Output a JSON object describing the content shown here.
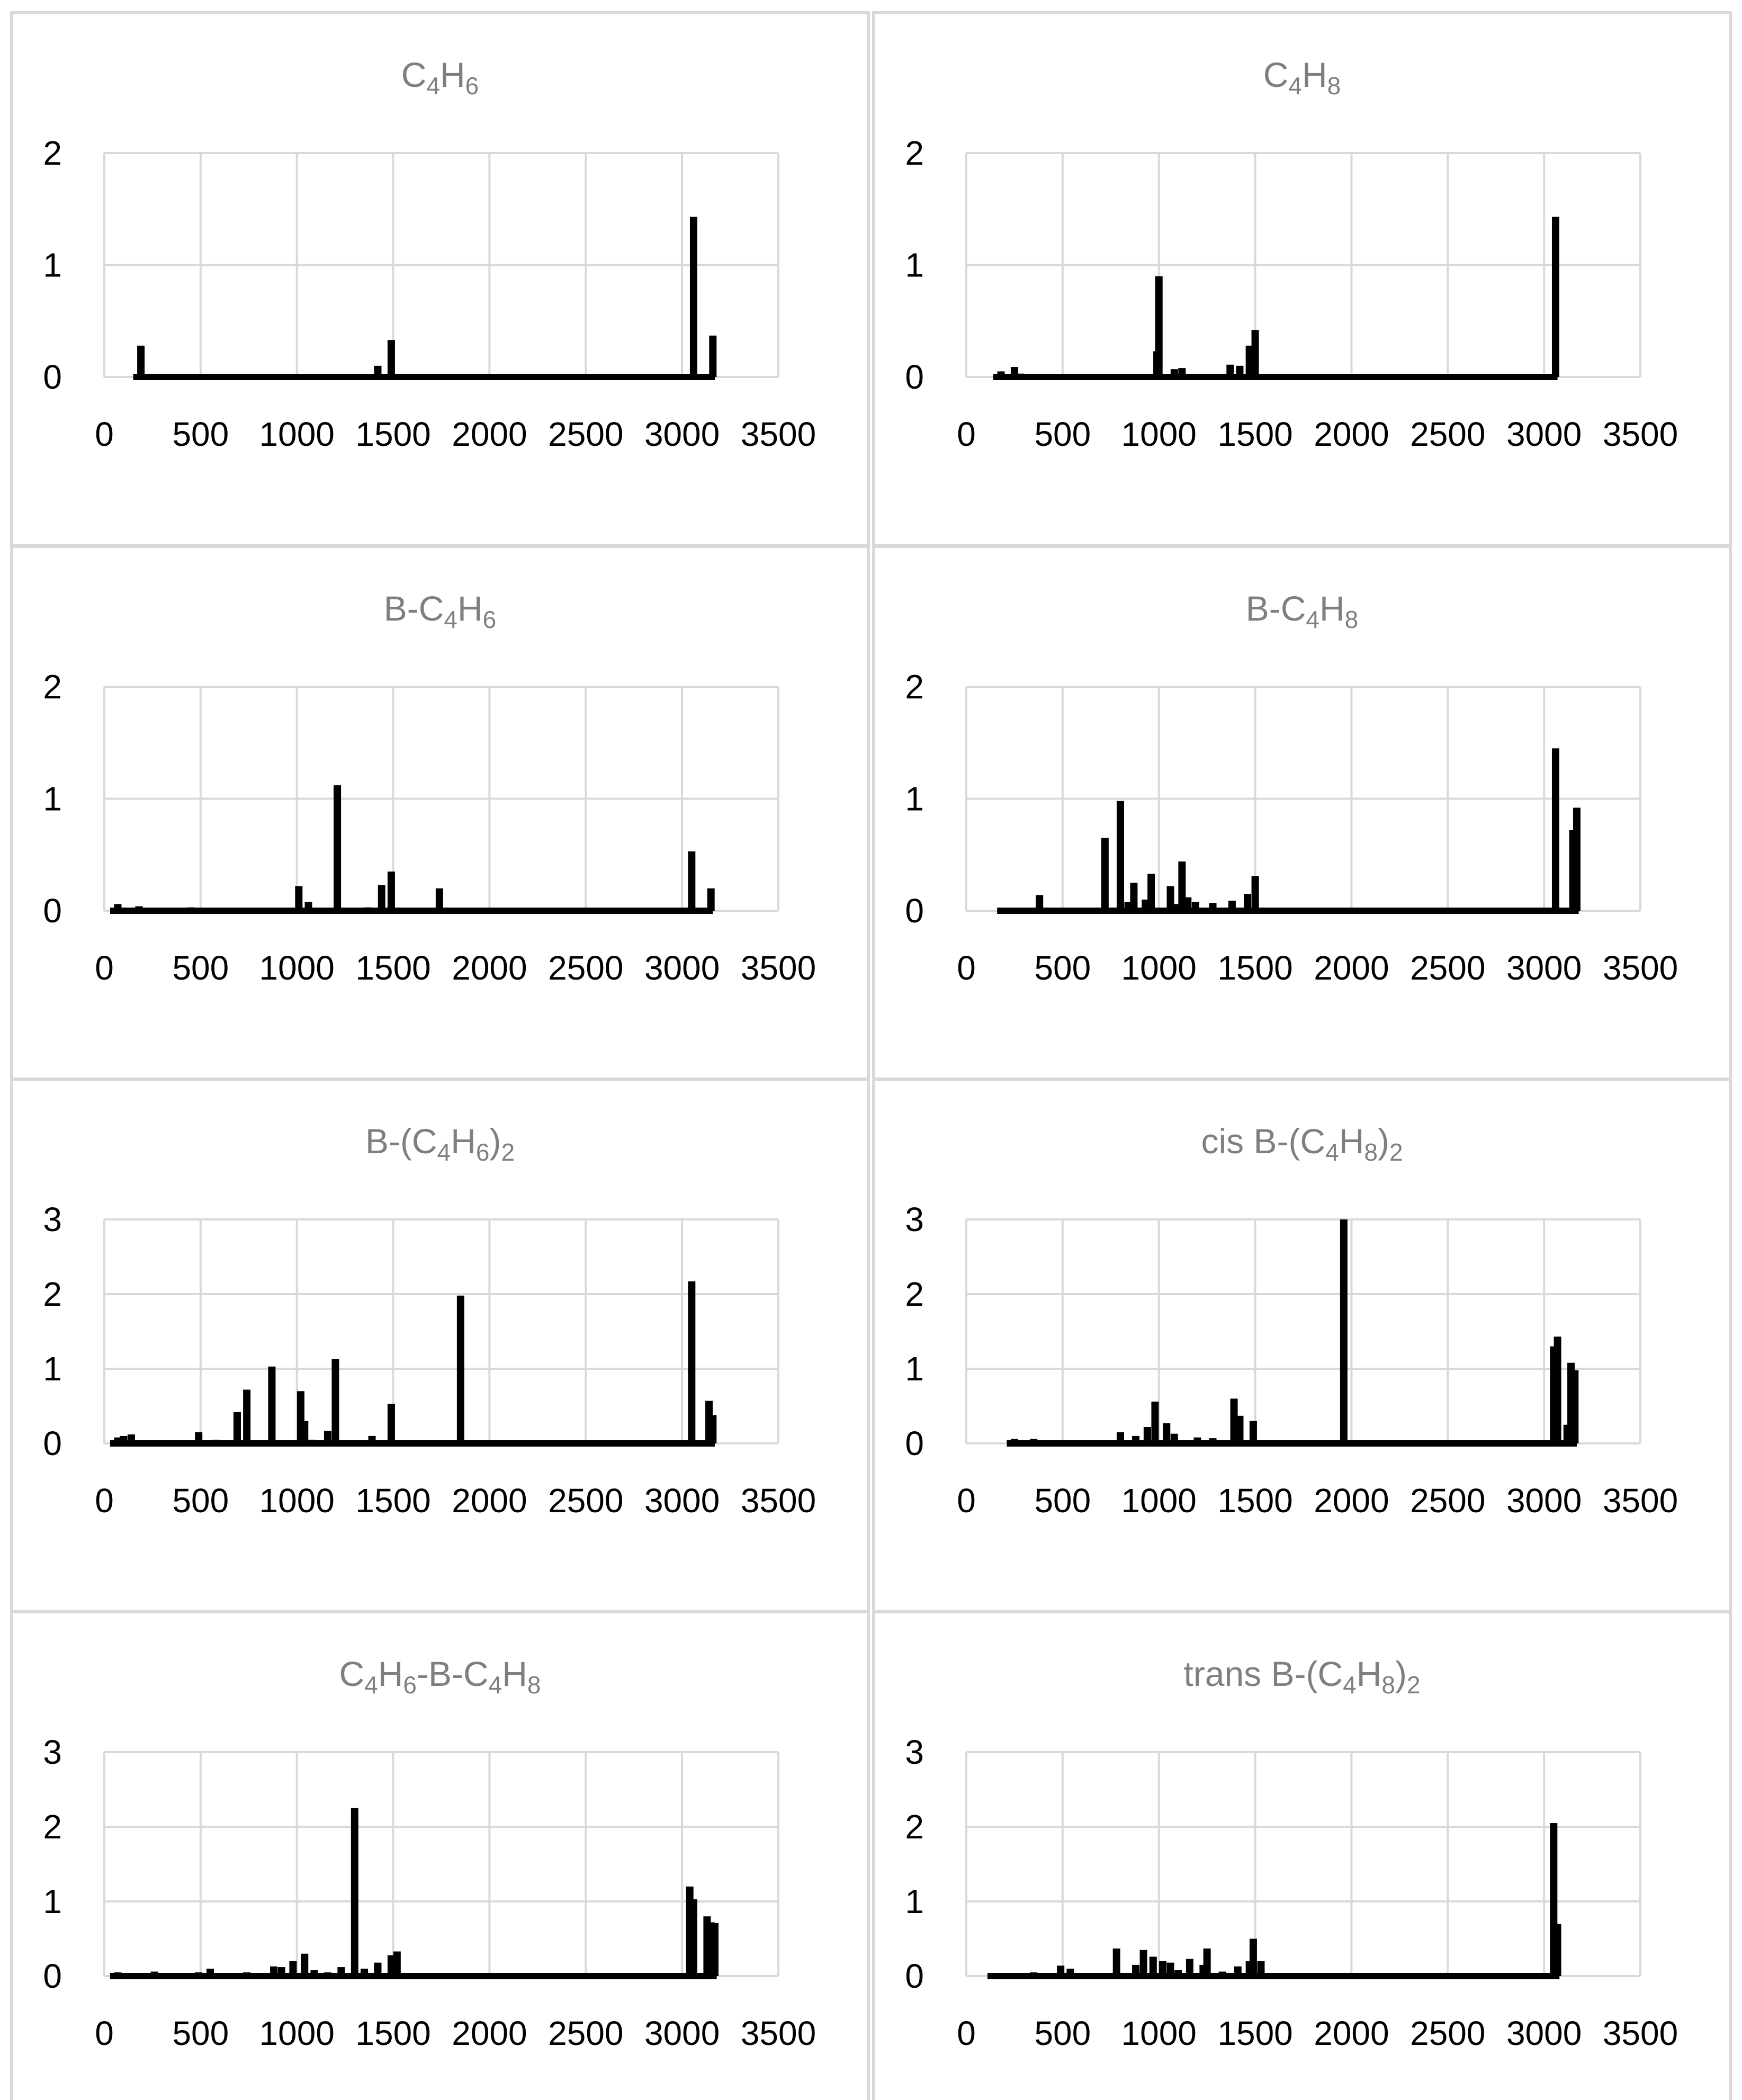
{
  "colors": {
    "bars": "#000000",
    "grid": "#d9d9d9",
    "title": "#7f7f7f",
    "border": "#d9d9d9"
  },
  "chart_data": [
    {
      "type": "bar",
      "title": "C4H6",
      "title_parts": [
        {
          "t": "C"
        },
        {
          "t": "4",
          "sub": true
        },
        {
          "t": "H"
        },
        {
          "t": "6",
          "sub": true
        }
      ],
      "x_range": [
        0,
        3500
      ],
      "x_ticks": [
        0,
        500,
        1000,
        1500,
        2000,
        2500,
        3000,
        3500
      ],
      "y_range": [
        0,
        2
      ],
      "y_ticks": [
        0,
        1,
        2
      ],
      "grid": true,
      "x": [
        190,
        1040,
        1180,
        1420,
        1490,
        3060,
        3160
      ],
      "values": [
        0.28,
        0.02,
        0.01,
        0.1,
        0.33,
        1.43,
        0.37
      ]
    },
    {
      "type": "bar",
      "title": "C4H8",
      "title_parts": [
        {
          "t": "C"
        },
        {
          "t": "4",
          "sub": true
        },
        {
          "t": "H"
        },
        {
          "t": "8",
          "sub": true
        }
      ],
      "x_range": [
        0,
        3500
      ],
      "x_ticks": [
        0,
        500,
        1000,
        1500,
        2000,
        2500,
        3000,
        3500
      ],
      "y_range": [
        0,
        2
      ],
      "y_ticks": [
        0,
        1,
        2
      ],
      "grid": true,
      "x": [
        180,
        250,
        280,
        990,
        1000,
        1080,
        1120,
        1370,
        1420,
        1470,
        1500,
        3060
      ],
      "values": [
        0.05,
        0.09,
        0.03,
        0.23,
        0.9,
        0.07,
        0.08,
        0.11,
        0.1,
        0.28,
        0.42,
        1.43
      ]
    },
    {
      "type": "bar",
      "title": "B-C4H6",
      "title_parts": [
        {
          "t": "B-C"
        },
        {
          "t": "4",
          "sub": true
        },
        {
          "t": "H"
        },
        {
          "t": "6",
          "sub": true
        }
      ],
      "x_range": [
        0,
        3500
      ],
      "x_ticks": [
        0,
        500,
        1000,
        1500,
        2000,
        2500,
        3000,
        3500
      ],
      "y_range": [
        0,
        2
      ],
      "y_ticks": [
        0,
        1,
        2
      ],
      "grid": true,
      "x": [
        70,
        180,
        300,
        450,
        780,
        1010,
        1060,
        1210,
        1370,
        1440,
        1490,
        1740,
        3050,
        3150
      ],
      "values": [
        0.06,
        0.04,
        0.02,
        0.03,
        0.02,
        0.22,
        0.08,
        1.12,
        0.03,
        0.23,
        0.35,
        0.2,
        0.53,
        0.2
      ]
    },
    {
      "type": "bar",
      "title": "B-C4H8",
      "title_parts": [
        {
          "t": "B-C"
        },
        {
          "t": "4",
          "sub": true
        },
        {
          "t": "H"
        },
        {
          "t": "8",
          "sub": true
        }
      ],
      "x_range": [
        0,
        3500
      ],
      "x_ticks": [
        0,
        500,
        1000,
        1500,
        2000,
        2500,
        3000,
        3500
      ],
      "y_range": [
        0,
        2
      ],
      "y_ticks": [
        0,
        1,
        2
      ],
      "grid": true,
      "x": [
        200,
        300,
        380,
        720,
        800,
        840,
        870,
        930,
        960,
        1060,
        1090,
        1120,
        1150,
        1190,
        1280,
        1380,
        1460,
        1500,
        3060,
        3150,
        3170
      ],
      "values": [
        0.01,
        0.02,
        0.14,
        0.65,
        0.98,
        0.08,
        0.25,
        0.1,
        0.33,
        0.22,
        0.06,
        0.44,
        0.12,
        0.08,
        0.07,
        0.09,
        0.15,
        0.31,
        1.45,
        0.72,
        0.92
      ]
    },
    {
      "type": "bar",
      "title": "B-(C4H6)2",
      "title_parts": [
        {
          "t": "B-(C"
        },
        {
          "t": "4",
          "sub": true
        },
        {
          "t": "H"
        },
        {
          "t": "6",
          "sub": true
        },
        {
          "t": ")"
        },
        {
          "t": "2",
          "sub": true
        }
      ],
      "x_range": [
        0,
        3500
      ],
      "x_ticks": [
        0,
        500,
        1000,
        1500,
        2000,
        2500,
        3000,
        3500
      ],
      "y_range": [
        0,
        3
      ],
      "y_ticks": [
        0,
        1,
        2,
        3
      ],
      "grid": true,
      "x": [
        70,
        100,
        140,
        490,
        580,
        690,
        740,
        870,
        1020,
        1040,
        1080,
        1160,
        1200,
        1390,
        1490,
        1850,
        3050,
        3140,
        3160
      ],
      "values": [
        0.08,
        0.1,
        0.12,
        0.15,
        0.05,
        0.42,
        0.72,
        1.03,
        0.7,
        0.3,
        0.05,
        0.17,
        1.13,
        0.1,
        0.53,
        1.98,
        2.17,
        0.57,
        0.38
      ]
    },
    {
      "type": "bar",
      "title": "cis B-(C4H8)2",
      "title_parts": [
        {
          "t": "cis B-(C"
        },
        {
          "t": "4",
          "sub": true
        },
        {
          "t": "H"
        },
        {
          "t": "8",
          "sub": true
        },
        {
          "t": ")"
        },
        {
          "t": "2",
          "sub": true
        }
      ],
      "x_range": [
        0,
        3500
      ],
      "x_ticks": [
        0,
        500,
        1000,
        1500,
        2000,
        2500,
        3000,
        3500
      ],
      "y_range": [
        0,
        3
      ],
      "y_ticks": [
        0,
        1,
        2,
        3
      ],
      "grid": true,
      "x": [
        250,
        350,
        500,
        800,
        880,
        940,
        980,
        1040,
        1080,
        1200,
        1280,
        1390,
        1420,
        1490,
        1960,
        3050,
        3070,
        3120,
        3140,
        3160
      ],
      "values": [
        0.06,
        0.06,
        0.03,
        0.15,
        0.1,
        0.22,
        0.56,
        0.27,
        0.13,
        0.08,
        0.07,
        0.6,
        0.37,
        0.3,
        3.0,
        1.3,
        1.43,
        0.25,
        1.08,
        0.98
      ]
    },
    {
      "type": "bar",
      "title": "C4H6-B-C4H8",
      "title_parts": [
        {
          "t": "C"
        },
        {
          "t": "4",
          "sub": true
        },
        {
          "t": "H"
        },
        {
          "t": "6",
          "sub": true
        },
        {
          "t": "-B-C"
        },
        {
          "t": "4",
          "sub": true
        },
        {
          "t": "H"
        },
        {
          "t": "8",
          "sub": true
        }
      ],
      "x_range": [
        0,
        3500
      ],
      "x_ticks": [
        0,
        500,
        1000,
        1500,
        2000,
        2500,
        3000,
        3500
      ],
      "y_range": [
        0,
        3
      ],
      "y_ticks": [
        0,
        1,
        2,
        3
      ],
      "grid": true,
      "x": [
        70,
        120,
        200,
        260,
        320,
        420,
        490,
        550,
        740,
        800,
        880,
        920,
        980,
        1040,
        1090,
        1160,
        1230,
        1300,
        1350,
        1420,
        1490,
        1520,
        1750,
        3040,
        3060,
        3130,
        3150,
        3170
      ],
      "values": [
        0.05,
        0.04,
        0.03,
        0.06,
        0.04,
        0.04,
        0.05,
        0.1,
        0.05,
        0.04,
        0.13,
        0.12,
        0.2,
        0.3,
        0.08,
        0.05,
        0.12,
        2.25,
        0.1,
        0.18,
        0.28,
        0.33,
        0.02,
        1.2,
        1.03,
        0.8,
        0.72,
        0.71
      ]
    },
    {
      "type": "bar",
      "title": "trans B-(C4H8)2",
      "title_parts": [
        {
          "t": "trans B-(C"
        },
        {
          "t": "4",
          "sub": true
        },
        {
          "t": "H"
        },
        {
          "t": "8",
          "sub": true
        },
        {
          "t": ")"
        },
        {
          "t": "2",
          "sub": true
        }
      ],
      "x_range": [
        0,
        3500
      ],
      "x_ticks": [
        0,
        500,
        1000,
        1500,
        2000,
        2500,
        3000,
        3500
      ],
      "y_range": [
        0,
        3
      ],
      "y_ticks": [
        0,
        1,
        2,
        3
      ],
      "grid": true,
      "x": [
        150,
        250,
        350,
        420,
        490,
        540,
        780,
        880,
        920,
        970,
        1020,
        1060,
        1100,
        1160,
        1230,
        1250,
        1330,
        1410,
        1470,
        1490,
        1530,
        3050,
        3070
      ],
      "values": [
        0.02,
        0.03,
        0.05,
        0.04,
        0.14,
        0.1,
        0.37,
        0.15,
        0.35,
        0.26,
        0.2,
        0.18,
        0.08,
        0.23,
        0.15,
        0.37,
        0.06,
        0.13,
        0.2,
        0.5,
        0.2,
        2.05,
        0.7
      ]
    }
  ]
}
